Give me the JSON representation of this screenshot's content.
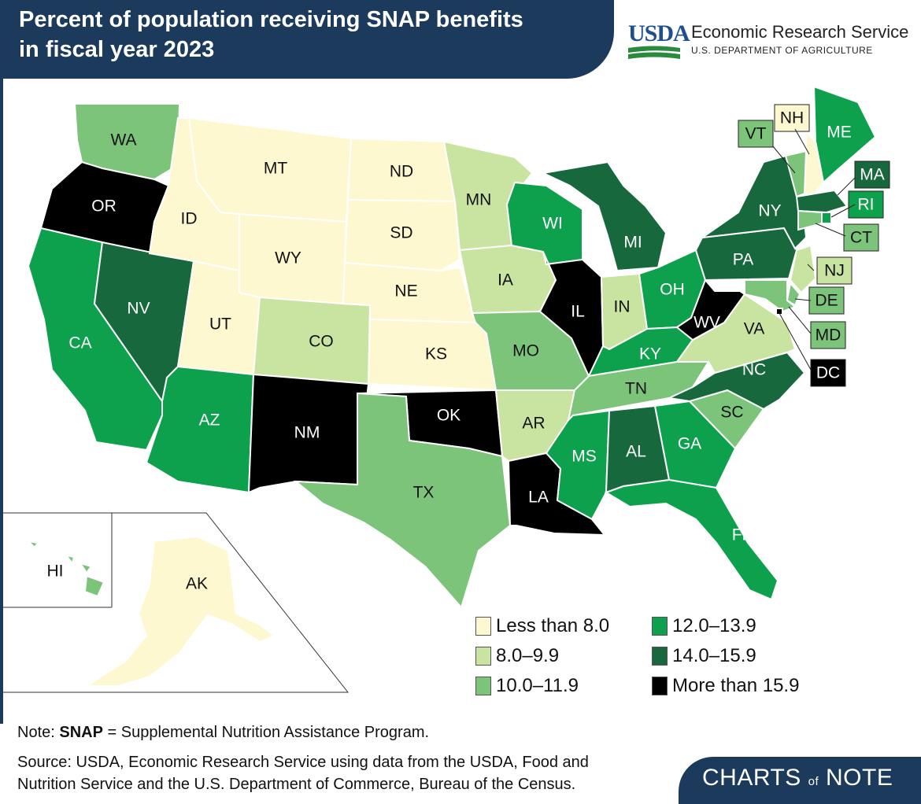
{
  "title": {
    "line1": "Percent of population receiving SNAP benefits",
    "line2": "in fiscal year 2023"
  },
  "agency": {
    "logo_text": "USDA",
    "name": "Economic Research Service",
    "department": "U.S. DEPARTMENT OF AGRICULTURE"
  },
  "legend": [
    {
      "label": "Less than 8.0",
      "color": "#fdf8cf",
      "key": "lt8"
    },
    {
      "label": "8.0–9.9",
      "color": "#c9e4a0",
      "key": "c8"
    },
    {
      "label": "10.0–11.9",
      "color": "#7bc47a",
      "key": "c10"
    },
    {
      "label": "12.0–13.9",
      "color": "#0ea14d",
      "key": "c12"
    },
    {
      "label": "14.0–15.9",
      "color": "#17693d",
      "key": "c14"
    },
    {
      "label": "More than 15.9",
      "color": "#000000",
      "key": "gt159"
    }
  ],
  "states": [
    {
      "abbr": "WA",
      "range": "10.0–11.9"
    },
    {
      "abbr": "OR",
      "range": "More than 15.9"
    },
    {
      "abbr": "CA",
      "range": "12.0–13.9"
    },
    {
      "abbr": "NV",
      "range": "14.0–15.9"
    },
    {
      "abbr": "ID",
      "range": "Less than 8.0"
    },
    {
      "abbr": "MT",
      "range": "Less than 8.0"
    },
    {
      "abbr": "WY",
      "range": "Less than 8.0"
    },
    {
      "abbr": "UT",
      "range": "Less than 8.0"
    },
    {
      "abbr": "AZ",
      "range": "12.0–13.9"
    },
    {
      "abbr": "CO",
      "range": "8.0–9.9"
    },
    {
      "abbr": "NM",
      "range": "More than 15.9"
    },
    {
      "abbr": "ND",
      "range": "Less than 8.0"
    },
    {
      "abbr": "SD",
      "range": "Less than 8.0"
    },
    {
      "abbr": "NE",
      "range": "Less than 8.0"
    },
    {
      "abbr": "KS",
      "range": "Less than 8.0"
    },
    {
      "abbr": "OK",
      "range": "More than 15.9"
    },
    {
      "abbr": "TX",
      "range": "10.0–11.9"
    },
    {
      "abbr": "MN",
      "range": "8.0–9.9"
    },
    {
      "abbr": "IA",
      "range": "8.0–9.9"
    },
    {
      "abbr": "MO",
      "range": "10.0–11.9"
    },
    {
      "abbr": "AR",
      "range": "8.0–9.9"
    },
    {
      "abbr": "LA",
      "range": "More than 15.9"
    },
    {
      "abbr": "WI",
      "range": "12.0–13.9"
    },
    {
      "abbr": "IL",
      "range": "More than 15.9"
    },
    {
      "abbr": "MI",
      "range": "14.0–15.9"
    },
    {
      "abbr": "IN",
      "range": "8.0–9.9"
    },
    {
      "abbr": "OH",
      "range": "12.0–13.9"
    },
    {
      "abbr": "KY",
      "range": "12.0–13.9"
    },
    {
      "abbr": "TN",
      "range": "10.0–11.9"
    },
    {
      "abbr": "MS",
      "range": "12.0–13.9"
    },
    {
      "abbr": "AL",
      "range": "14.0–15.9"
    },
    {
      "abbr": "GA",
      "range": "12.0–13.9"
    },
    {
      "abbr": "FL",
      "range": "12.0–13.9"
    },
    {
      "abbr": "SC",
      "range": "10.0–11.9"
    },
    {
      "abbr": "NC",
      "range": "14.0–15.9"
    },
    {
      "abbr": "VA",
      "range": "8.0–9.9"
    },
    {
      "abbr": "WV",
      "range": "More than 15.9"
    },
    {
      "abbr": "PA",
      "range": "14.0–15.9"
    },
    {
      "abbr": "NY",
      "range": "14.0–15.9"
    },
    {
      "abbr": "ME",
      "range": "12.0–13.9"
    },
    {
      "abbr": "NH",
      "range": "Less than 8.0"
    },
    {
      "abbr": "VT",
      "range": "10.0–11.9"
    },
    {
      "abbr": "MA",
      "range": "14.0–15.9"
    },
    {
      "abbr": "RI",
      "range": "12.0–13.9"
    },
    {
      "abbr": "CT",
      "range": "10.0–11.9"
    },
    {
      "abbr": "NJ",
      "range": "8.0–9.9"
    },
    {
      "abbr": "DE",
      "range": "10.0–11.9"
    },
    {
      "abbr": "MD",
      "range": "10.0–11.9"
    },
    {
      "abbr": "DC",
      "range": "More than 15.9"
    },
    {
      "abbr": "AK",
      "range": "Less than 8.0"
    },
    {
      "abbr": "HI",
      "range": "10.0–11.9"
    }
  ],
  "note": {
    "prefix": "Note: ",
    "term": "SNAP",
    "rest": " = Supplemental Nutrition Assistance Program."
  },
  "source": {
    "line1": "Source: USDA, Economic Research Service using data from the USDA, Food and",
    "line2": "Nutrition Service and the U.S. Department of Commerce, Bureau of the Census."
  },
  "branding": {
    "charts": "CHARTS",
    "of": "of",
    "note": "NOTE"
  }
}
